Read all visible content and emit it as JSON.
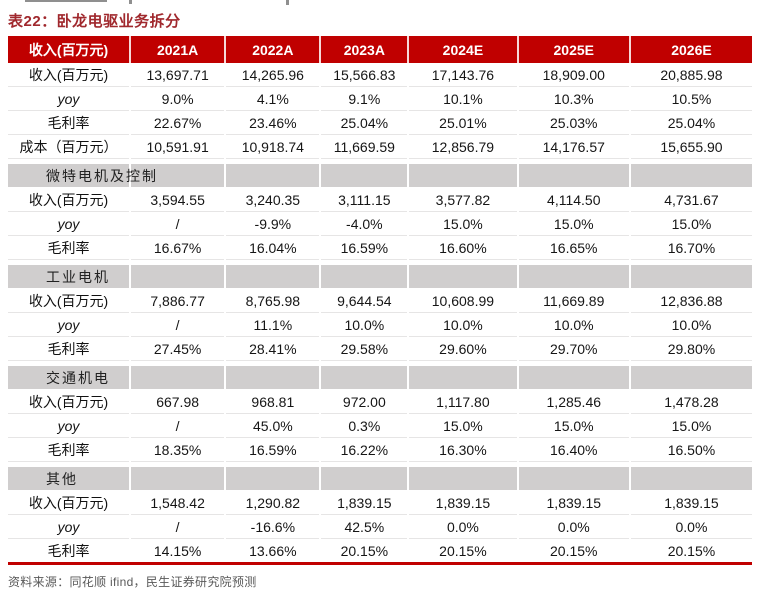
{
  "title": "表22：卧龙电驱业务拆分",
  "source_note": "资料来源：同花顺 ifind，民生证券研究院预测",
  "colors": {
    "header_bg": "#C00000",
    "header_text": "#ffffff",
    "title_text": "#A0282D",
    "section_row_bg": "#D0CECE",
    "bottom_rule": "#C00000",
    "source_text": "#595959"
  },
  "table": {
    "columns": [
      "收入(百万元)",
      "2021A",
      "2022A",
      "2023A",
      "2024E",
      "2025E",
      "2026E"
    ],
    "rows": [
      {
        "type": "data",
        "label": "收入(百万元)",
        "values": [
          "13,697.71",
          "14,265.96",
          "15,566.83",
          "17,143.76",
          "18,909.00",
          "20,885.98"
        ]
      },
      {
        "type": "data",
        "italic": true,
        "label": "yoy",
        "values": [
          "9.0%",
          "4.1%",
          "9.1%",
          "10.1%",
          "10.3%",
          "10.5%"
        ]
      },
      {
        "type": "data",
        "label": "毛利率",
        "values": [
          "22.67%",
          "23.46%",
          "25.04%",
          "25.01%",
          "25.03%",
          "25.04%"
        ]
      },
      {
        "type": "data",
        "label": "成本（百万元）",
        "values": [
          "10,591.91",
          "10,918.74",
          "11,669.59",
          "12,856.79",
          "14,176.57",
          "15,655.90"
        ]
      },
      {
        "type": "section",
        "label": "微特电机及控制"
      },
      {
        "type": "data",
        "label": "收入(百万元)",
        "values": [
          "3,594.55",
          "3,240.35",
          "3,111.15",
          "3,577.82",
          "4,114.50",
          "4,731.67"
        ]
      },
      {
        "type": "data",
        "italic": true,
        "label": "yoy",
        "values": [
          "/",
          "-9.9%",
          "-4.0%",
          "15.0%",
          "15.0%",
          "15.0%"
        ]
      },
      {
        "type": "data",
        "label": "毛利率",
        "values": [
          "16.67%",
          "16.04%",
          "16.59%",
          "16.60%",
          "16.65%",
          "16.70%"
        ]
      },
      {
        "type": "section",
        "label": "工业电机"
      },
      {
        "type": "data",
        "label": "收入(百万元)",
        "values": [
          "7,886.77",
          "8,765.98",
          "9,644.54",
          "10,608.99",
          "11,669.89",
          "12,836.88"
        ]
      },
      {
        "type": "data",
        "italic": true,
        "label": "yoy",
        "values": [
          "/",
          "11.1%",
          "10.0%",
          "10.0%",
          "10.0%",
          "10.0%"
        ]
      },
      {
        "type": "data",
        "label": "毛利率",
        "values": [
          "27.45%",
          "28.41%",
          "29.58%",
          "29.60%",
          "29.70%",
          "29.80%"
        ]
      },
      {
        "type": "section",
        "label": "交通机电"
      },
      {
        "type": "data",
        "label": "收入(百万元)",
        "values": [
          "667.98",
          "968.81",
          "972.00",
          "1,117.80",
          "1,285.46",
          "1,478.28"
        ]
      },
      {
        "type": "data",
        "italic": true,
        "label": "yoy",
        "values": [
          "/",
          "45.0%",
          "0.3%",
          "15.0%",
          "15.0%",
          "15.0%"
        ]
      },
      {
        "type": "data",
        "label": "毛利率",
        "values": [
          "18.35%",
          "16.59%",
          "16.22%",
          "16.30%",
          "16.40%",
          "16.50%"
        ]
      },
      {
        "type": "section",
        "label": "其他"
      },
      {
        "type": "data",
        "label": "收入(百万元)",
        "values": [
          "1,548.42",
          "1,290.82",
          "1,839.15",
          "1,839.15",
          "1,839.15",
          "1,839.15"
        ]
      },
      {
        "type": "data",
        "italic": true,
        "label": "yoy",
        "values": [
          "/",
          "-16.6%",
          "42.5%",
          "0.0%",
          "0.0%",
          "0.0%"
        ]
      },
      {
        "type": "data",
        "label": "毛利率",
        "values": [
          "14.15%",
          "13.66%",
          "20.15%",
          "20.15%",
          "20.15%",
          "20.15%"
        ]
      }
    ]
  }
}
